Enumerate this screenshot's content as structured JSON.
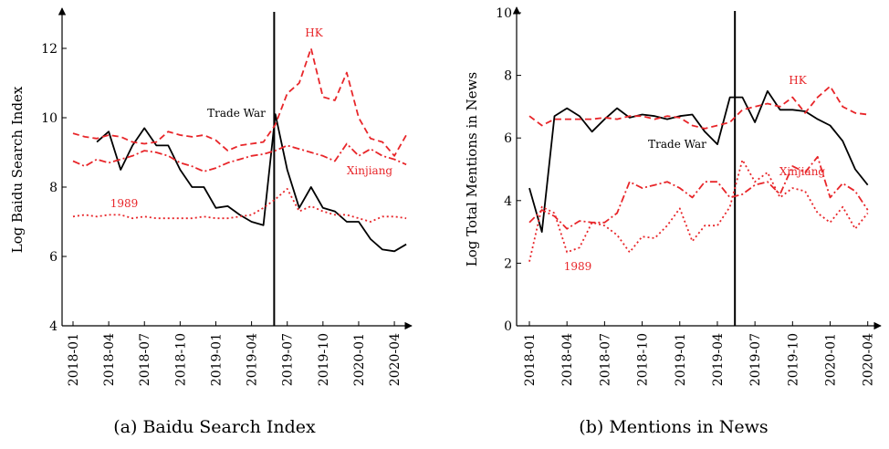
{
  "chart_data": [
    {
      "type": "line",
      "subtitle": "(a) Baidu Search Index",
      "ylabel": "Log Baidu Search Index",
      "categories": [
        "2018-01",
        null,
        null,
        "2018-04",
        null,
        null,
        "2018-07",
        null,
        null,
        "2018-10",
        null,
        null,
        "2019-01",
        null,
        null,
        "2019-04",
        null,
        null,
        "2019-07",
        null,
        null,
        "2019-10",
        null,
        null,
        "2020-01",
        null,
        null,
        "2020-04",
        null
      ],
      "ylim": [
        4,
        13
      ],
      "yticks": [
        4,
        6,
        8,
        10,
        12
      ],
      "vline": 16.9,
      "series": [
        {
          "name": "Trade War",
          "color": "#000000",
          "style": "solid",
          "values": [
            null,
            null,
            9.3,
            9.6,
            8.5,
            9.2,
            9.7,
            9.2,
            9.2,
            8.5,
            8.0,
            8.0,
            7.4,
            7.45,
            7.2,
            7.0,
            6.9,
            10.1,
            8.5,
            7.4,
            8.0,
            7.4,
            7.3,
            7.0,
            7.0,
            6.5,
            6.2,
            6.15,
            6.35
          ]
        },
        {
          "name": "HK",
          "color": "#e8262a",
          "style": "dashed",
          "values": [
            9.55,
            9.45,
            9.4,
            9.5,
            9.45,
            9.3,
            9.25,
            9.3,
            9.6,
            9.5,
            9.45,
            9.5,
            9.35,
            9.05,
            9.2,
            9.25,
            9.3,
            9.8,
            10.7,
            11.0,
            12.0,
            10.6,
            10.5,
            11.3,
            10.0,
            9.4,
            9.3,
            8.9,
            9.5
          ]
        },
        {
          "name": "Xinjiang",
          "color": "#e8262a",
          "style": "dashdot",
          "values": [
            8.75,
            8.6,
            8.8,
            8.7,
            8.8,
            8.9,
            9.05,
            9.0,
            8.9,
            8.7,
            8.6,
            8.45,
            8.55,
            8.7,
            8.8,
            8.9,
            8.95,
            9.05,
            9.2,
            9.1,
            9.0,
            8.9,
            8.75,
            9.25,
            8.9,
            9.1,
            8.9,
            8.8,
            8.65
          ]
        },
        {
          "name": "1989",
          "color": "#e8262a",
          "style": "dotted",
          "values": [
            7.15,
            7.2,
            7.15,
            7.2,
            7.2,
            7.1,
            7.15,
            7.1,
            7.1,
            7.1,
            7.1,
            7.15,
            7.1,
            7.1,
            7.15,
            7.2,
            7.4,
            7.65,
            7.95,
            7.3,
            7.45,
            7.3,
            7.2,
            7.2,
            7.1,
            7.0,
            7.15,
            7.15,
            7.1
          ]
        }
      ]
    },
    {
      "type": "line",
      "subtitle": "(b) Mentions in News",
      "ylabel": "Log Total Mentions in News",
      "categories": [
        "2018-01",
        null,
        null,
        "2018-04",
        null,
        null,
        "2018-07",
        null,
        null,
        "2018-10",
        null,
        null,
        "2019-01",
        null,
        null,
        "2019-04",
        null,
        null,
        "2019-07",
        null,
        null,
        "2019-10",
        null,
        null,
        "2020-01",
        null,
        null,
        "2020-04"
      ],
      "ylim": [
        0,
        10
      ],
      "yticks": [
        0,
        2,
        4,
        6,
        8,
        10
      ],
      "vline": 16.4,
      "series": [
        {
          "name": "Trade War",
          "color": "#000000",
          "style": "solid",
          "values": [
            4.4,
            3.0,
            6.7,
            6.95,
            6.7,
            6.2,
            6.6,
            6.95,
            6.65,
            6.75,
            6.7,
            6.6,
            6.7,
            6.75,
            6.2,
            5.8,
            7.3,
            7.3,
            6.5,
            7.5,
            6.9,
            6.9,
            6.85,
            6.6,
            6.4,
            5.9,
            5.0,
            4.5
          ]
        },
        {
          "name": "HK",
          "color": "#e8262a",
          "style": "dashed",
          "values": [
            6.7,
            6.4,
            6.6,
            6.6,
            6.6,
            6.6,
            6.65,
            6.6,
            6.7,
            6.7,
            6.6,
            6.7,
            6.65,
            6.4,
            6.3,
            6.4,
            6.5,
            6.9,
            7.0,
            7.1,
            7.0,
            7.3,
            6.8,
            7.3,
            7.65,
            7.0,
            6.8,
            6.75
          ]
        },
        {
          "name": "Xinjiang",
          "color": "#e8262a",
          "style": "dashdot",
          "values": [
            3.3,
            3.7,
            3.5,
            3.1,
            3.35,
            3.3,
            3.3,
            3.6,
            4.6,
            4.4,
            4.5,
            4.6,
            4.4,
            4.1,
            4.6,
            4.6,
            4.1,
            4.2,
            4.5,
            4.6,
            4.2,
            5.1,
            4.9,
            5.4,
            4.1,
            4.55,
            4.3,
            3.7
          ]
        },
        {
          "name": "1989",
          "color": "#e8262a",
          "style": "dotted",
          "values": [
            2.05,
            3.8,
            3.6,
            2.35,
            2.5,
            3.3,
            3.2,
            2.9,
            2.35,
            2.85,
            2.8,
            3.2,
            3.75,
            2.7,
            3.2,
            3.2,
            3.8,
            5.3,
            4.6,
            4.9,
            4.1,
            4.4,
            4.3,
            3.6,
            3.3,
            3.8,
            3.1,
            3.6
          ]
        }
      ]
    }
  ]
}
